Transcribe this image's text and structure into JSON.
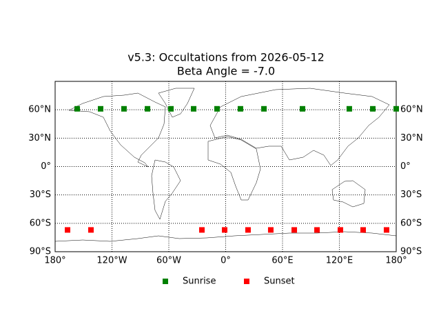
{
  "chart_data": {
    "type": "scatter",
    "title": "v5.3: Occultations from 2026-05-12",
    "subtitle": "Beta Angle = -7.0",
    "xlim": [
      -180,
      180
    ],
    "ylim": [
      -90,
      90
    ],
    "xticks": [
      {
        "value": -180,
        "label": "180°"
      },
      {
        "value": -120,
        "label": "120°W"
      },
      {
        "value": -60,
        "label": "60°W"
      },
      {
        "value": 0,
        "label": "0°"
      },
      {
        "value": 60,
        "label": "60°E"
      },
      {
        "value": 120,
        "label": "120°E"
      },
      {
        "value": 180,
        "label": "180°"
      }
    ],
    "yticks": [
      {
        "value": -90,
        "label": "90°S"
      },
      {
        "value": -60,
        "label": "60°S"
      },
      {
        "value": -30,
        "label": "30°S"
      },
      {
        "value": 0,
        "label": "0°"
      },
      {
        "value": 30,
        "label": "30°N"
      },
      {
        "value": 60,
        "label": "60°N"
      }
    ],
    "grid": true,
    "legend": "bottom",
    "series": [
      {
        "name": "Sunrise",
        "color": "#008000",
        "x": [
          -156.7,
          -132,
          -107.3,
          -82.5,
          -57.8,
          -33.8,
          -9.1,
          15.6,
          40.4,
          81.1,
          130.5,
          155.3,
          180
        ],
        "values": [
          61,
          61,
          61,
          61,
          61,
          61,
          61,
          61,
          61,
          61,
          61,
          61,
          61
        ]
      },
      {
        "name": "Sunset",
        "color": "#ff0000",
        "x": [
          -166.9,
          -142.2,
          -25.1,
          -1.1,
          23.6,
          47.6,
          72.4,
          96.4,
          121.1,
          145.1,
          169.8
        ],
        "values": [
          -67,
          -67,
          -67,
          -67,
          -67,
          -67,
          -67,
          -67,
          -67,
          -67,
          -67
        ]
      }
    ]
  }
}
